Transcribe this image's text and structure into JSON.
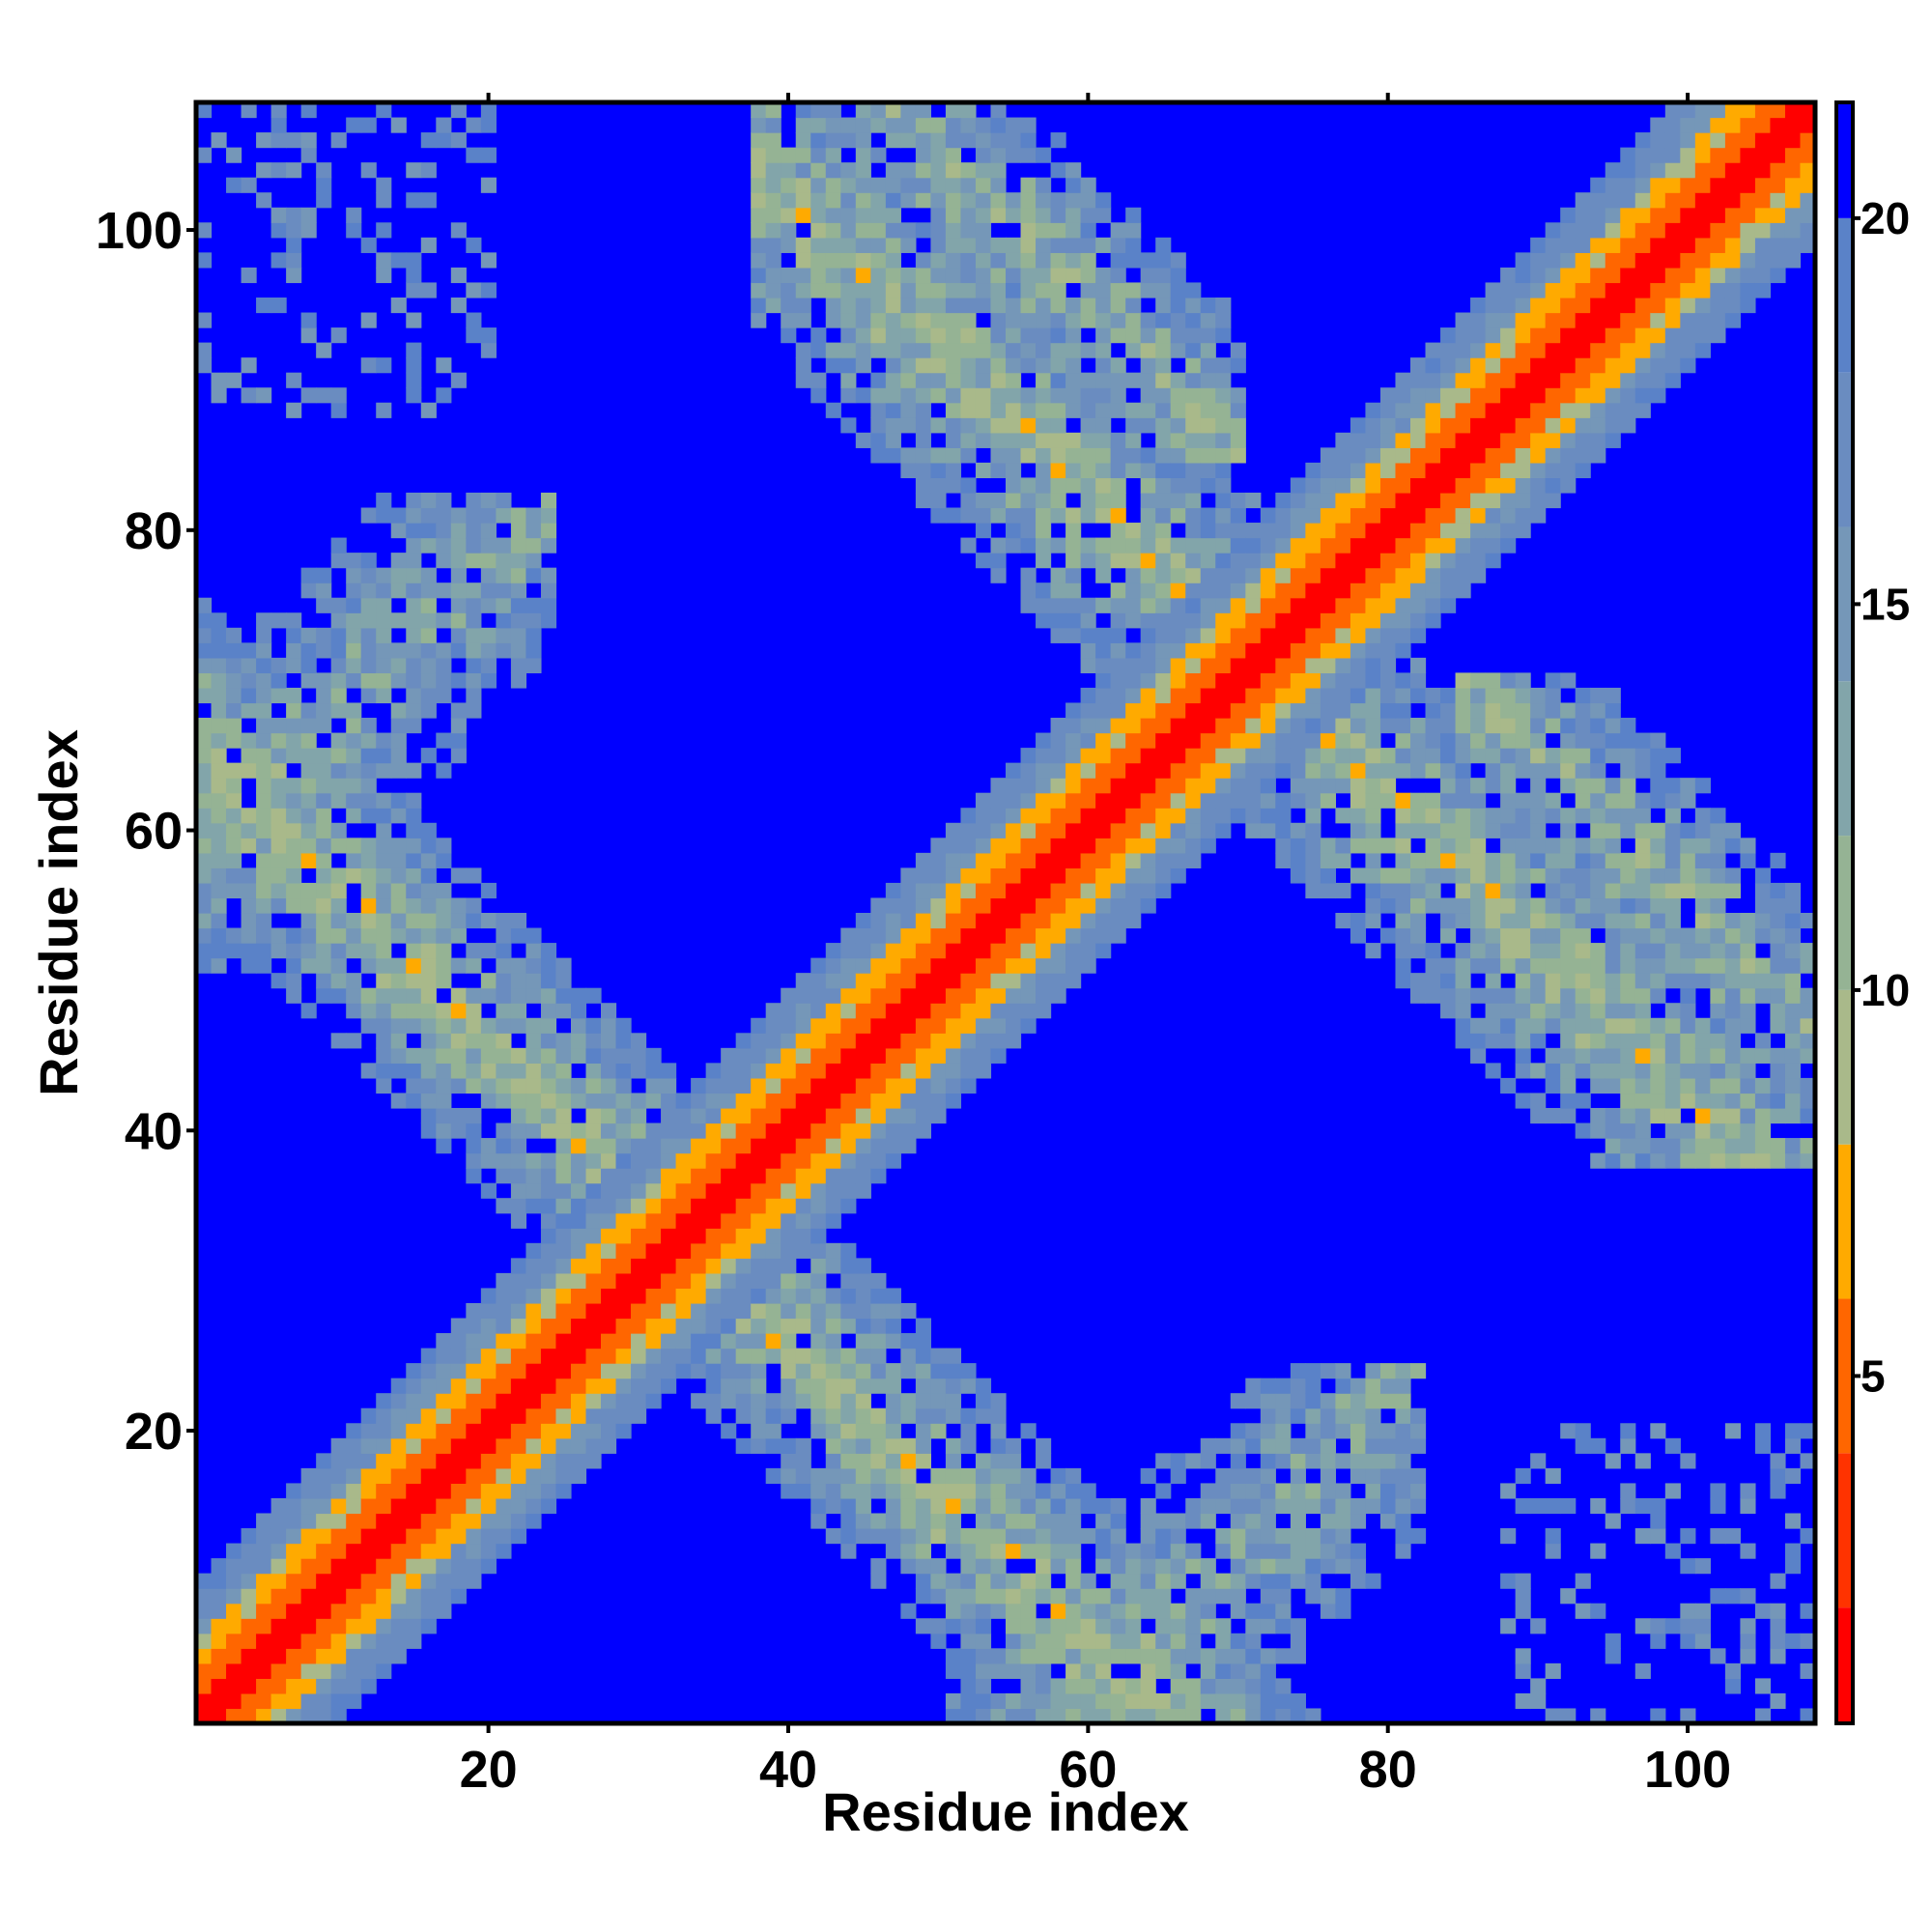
{
  "chart_data": {
    "type": "heatmap",
    "title": "",
    "xlabel": "Residue index",
    "ylabel": "Residue index",
    "n_residues": 108,
    "xlim": [
      0.5,
      108.5
    ],
    "ylim": [
      0.5,
      108.5
    ],
    "x_ticks": [
      20,
      40,
      60,
      80,
      100
    ],
    "y_ticks": [
      20,
      40,
      60,
      80,
      100
    ],
    "colorbar": {
      "range": [
        0.5,
        21.5
      ],
      "ticks": [
        5,
        10,
        15,
        20
      ],
      "colors": [
        {
          "max": 2,
          "color": "#ff0000"
        },
        {
          "max": 4,
          "color": "#ff3300"
        },
        {
          "max": 6,
          "color": "#ff6600"
        },
        {
          "max": 8,
          "color": "#ffaa00"
        },
        {
          "max": 10,
          "color": "#a9b98a"
        },
        {
          "max": 12,
          "color": "#95b394"
        },
        {
          "max": 14,
          "color": "#82a5aa"
        },
        {
          "max": 16,
          "color": "#7597b8"
        },
        {
          "max": 18,
          "color": "#6a8cc0"
        },
        {
          "max": 20,
          "color": "#5a82c8"
        },
        {
          "max": 99,
          "color": "#0000ff"
        }
      ]
    },
    "structure": {
      "helix_band_halfwidth": 9,
      "cross_contacts": [
        {
          "i_range": [
            1,
            32
          ],
          "j_range": [
            32,
            75
          ],
          "axis": "anti"
        },
        {
          "i_range": [
            38,
            70
          ],
          "j_range": [
            70,
            108
          ],
          "axis": "anti"
        },
        {
          "i_range": [
            44,
            70
          ],
          "j_range": [
            85,
            108
          ],
          "axis": "anti"
        },
        {
          "i_range": [
            1,
            22
          ],
          "j_range": [
            88,
            108
          ],
          "axis": "sparse"
        }
      ]
    }
  }
}
